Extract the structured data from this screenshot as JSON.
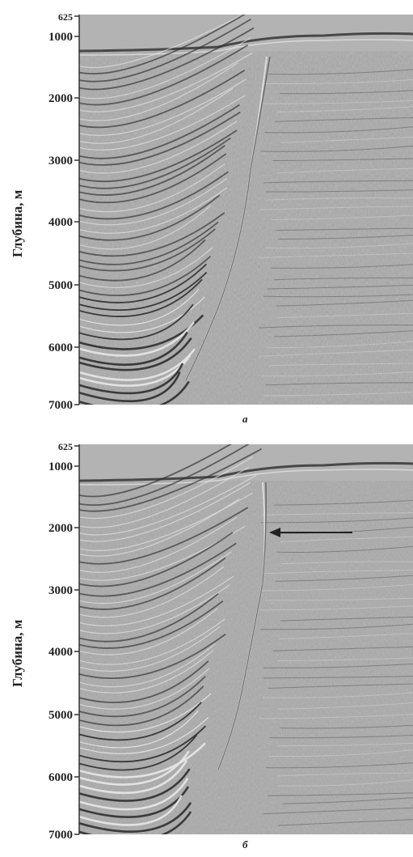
{
  "figure": {
    "y_axis_label": "Глубина, м",
    "panels": [
      {
        "caption": "а",
        "ticks": [
          "625",
          "1000",
          "2000",
          "3000",
          "4000",
          "5000",
          "6000",
          "7000"
        ],
        "arrow": false
      },
      {
        "caption": "б",
        "ticks": [
          "625",
          "1000",
          "2000",
          "3000",
          "4000",
          "5000",
          "6000",
          "7000"
        ],
        "arrow": true
      }
    ]
  },
  "colors": {
    "background": "#ffffff",
    "section_base": "#a9a9a9",
    "reflector_dark": "#2d2d2d",
    "reflector_light": "#e8e8e8",
    "arrow": "#222222"
  }
}
